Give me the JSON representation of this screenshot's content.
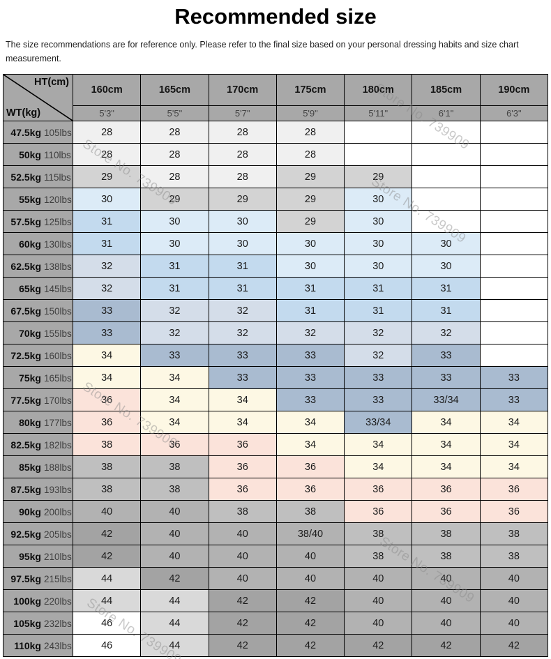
{
  "page": {
    "title": "Recommended size",
    "subtitle": "The size recommendations are for reference only. Please refer to the final size based on your personal dressing habits and size chart measurement."
  },
  "chart_data": {
    "type": "table",
    "title": "Recommended size",
    "note": "The size recommendations are for reference only. Please refer to the final size based on your personal dressing habits and size chart measurement.",
    "corner": {
      "ht": "HT(cm)",
      "wt": "WT(kg)"
    },
    "watermark": "Store No. 739909",
    "columns": [
      {
        "cm": "160cm",
        "ft": "5'3\""
      },
      {
        "cm": "165cm",
        "ft": "5'5\""
      },
      {
        "cm": "170cm",
        "ft": "5'7\""
      },
      {
        "cm": "175cm",
        "ft": "5'9\""
      },
      {
        "cm": "180cm",
        "ft": "5'11\""
      },
      {
        "cm": "185cm",
        "ft": "6'1\""
      },
      {
        "cm": "190cm",
        "ft": "6'3\""
      }
    ],
    "cell_colors": {
      "c28": "#f0f0f0",
      "c29": "#d3d3d3",
      "c30": "#dcebf7",
      "c31": "#c3daee",
      "c32": "#d4dde9",
      "c33": "#a9bbd0",
      "c34": "#fdf8e4",
      "c36": "#fbe3da",
      "c38": "#bfbfbf",
      "c40": "#b2b2b2",
      "c42": "#a3a3a3",
      "c44": "#d9d9d9",
      "c46": "#ffffff",
      "empty": "#ffffff"
    },
    "rows": [
      {
        "kg": "47.5kg",
        "lbs": "105lbs",
        "cells": [
          {
            "v": "28",
            "k": "c28"
          },
          {
            "v": "28",
            "k": "c28"
          },
          {
            "v": "28",
            "k": "c28"
          },
          {
            "v": "28",
            "k": "c28"
          },
          {
            "v": "",
            "k": "empty"
          },
          {
            "v": "",
            "k": "empty"
          },
          {
            "v": "",
            "k": "empty"
          }
        ]
      },
      {
        "kg": "50kg",
        "lbs": "110lbs",
        "cells": [
          {
            "v": "28",
            "k": "c28"
          },
          {
            "v": "28",
            "k": "c28"
          },
          {
            "v": "28",
            "k": "c28"
          },
          {
            "v": "28",
            "k": "c28"
          },
          {
            "v": "",
            "k": "empty"
          },
          {
            "v": "",
            "k": "empty"
          },
          {
            "v": "",
            "k": "empty"
          }
        ]
      },
      {
        "kg": "52.5kg",
        "lbs": "115lbs",
        "cells": [
          {
            "v": "29",
            "k": "c29"
          },
          {
            "v": "28",
            "k": "c28"
          },
          {
            "v": "28",
            "k": "c28"
          },
          {
            "v": "29",
            "k": "c29"
          },
          {
            "v": "29",
            "k": "c29"
          },
          {
            "v": "",
            "k": "empty"
          },
          {
            "v": "",
            "k": "empty"
          }
        ]
      },
      {
        "kg": "55kg",
        "lbs": "120lbs",
        "cells": [
          {
            "v": "30",
            "k": "c30"
          },
          {
            "v": "29",
            "k": "c29"
          },
          {
            "v": "29",
            "k": "c29"
          },
          {
            "v": "29",
            "k": "c29"
          },
          {
            "v": "30",
            "k": "c30"
          },
          {
            "v": "",
            "k": "empty"
          },
          {
            "v": "",
            "k": "empty"
          }
        ]
      },
      {
        "kg": "57.5kg",
        "lbs": "125lbs",
        "cells": [
          {
            "v": "31",
            "k": "c31"
          },
          {
            "v": "30",
            "k": "c30"
          },
          {
            "v": "30",
            "k": "c30"
          },
          {
            "v": "29",
            "k": "c29"
          },
          {
            "v": "30",
            "k": "c30"
          },
          {
            "v": "",
            "k": "empty"
          },
          {
            "v": "",
            "k": "empty"
          }
        ]
      },
      {
        "kg": "60kg",
        "lbs": "130lbs",
        "cells": [
          {
            "v": "31",
            "k": "c31"
          },
          {
            "v": "30",
            "k": "c30"
          },
          {
            "v": "30",
            "k": "c30"
          },
          {
            "v": "30",
            "k": "c30"
          },
          {
            "v": "30",
            "k": "c30"
          },
          {
            "v": "30",
            "k": "c30"
          },
          {
            "v": "",
            "k": "empty"
          }
        ]
      },
      {
        "kg": "62.5kg",
        "lbs": "138lbs",
        "cells": [
          {
            "v": "32",
            "k": "c32"
          },
          {
            "v": "31",
            "k": "c31"
          },
          {
            "v": "31",
            "k": "c31"
          },
          {
            "v": "30",
            "k": "c30"
          },
          {
            "v": "30",
            "k": "c30"
          },
          {
            "v": "30",
            "k": "c30"
          },
          {
            "v": "",
            "k": "empty"
          }
        ]
      },
      {
        "kg": "65kg",
        "lbs": "145lbs",
        "cells": [
          {
            "v": "32",
            "k": "c32"
          },
          {
            "v": "31",
            "k": "c31"
          },
          {
            "v": "31",
            "k": "c31"
          },
          {
            "v": "31",
            "k": "c31"
          },
          {
            "v": "31",
            "k": "c31"
          },
          {
            "v": "31",
            "k": "c31"
          },
          {
            "v": "",
            "k": "empty"
          }
        ]
      },
      {
        "kg": "67.5kg",
        "lbs": "150lbs",
        "cells": [
          {
            "v": "33",
            "k": "c33"
          },
          {
            "v": "32",
            "k": "c32"
          },
          {
            "v": "32",
            "k": "c32"
          },
          {
            "v": "31",
            "k": "c31"
          },
          {
            "v": "31",
            "k": "c31"
          },
          {
            "v": "31",
            "k": "c31"
          },
          {
            "v": "",
            "k": "empty"
          }
        ]
      },
      {
        "kg": "70kg",
        "lbs": "155lbs",
        "cells": [
          {
            "v": "33",
            "k": "c33"
          },
          {
            "v": "32",
            "k": "c32"
          },
          {
            "v": "32",
            "k": "c32"
          },
          {
            "v": "32",
            "k": "c32"
          },
          {
            "v": "32",
            "k": "c32"
          },
          {
            "v": "32",
            "k": "c32"
          },
          {
            "v": "",
            "k": "empty"
          }
        ]
      },
      {
        "kg": "72.5kg",
        "lbs": "160lbs",
        "cells": [
          {
            "v": "34",
            "k": "c34"
          },
          {
            "v": "33",
            "k": "c33"
          },
          {
            "v": "33",
            "k": "c33"
          },
          {
            "v": "33",
            "k": "c33"
          },
          {
            "v": "32",
            "k": "c32"
          },
          {
            "v": "33",
            "k": "c33"
          },
          {
            "v": "",
            "k": "empty"
          }
        ]
      },
      {
        "kg": "75kg",
        "lbs": "165lbs",
        "cells": [
          {
            "v": "34",
            "k": "c34"
          },
          {
            "v": "34",
            "k": "c34"
          },
          {
            "v": "33",
            "k": "c33"
          },
          {
            "v": "33",
            "k": "c33"
          },
          {
            "v": "33",
            "k": "c33"
          },
          {
            "v": "33",
            "k": "c33"
          },
          {
            "v": "33",
            "k": "c33"
          }
        ]
      },
      {
        "kg": "77.5kg",
        "lbs": "170lbs",
        "cells": [
          {
            "v": "36",
            "k": "c36"
          },
          {
            "v": "34",
            "k": "c34"
          },
          {
            "v": "34",
            "k": "c34"
          },
          {
            "v": "33",
            "k": "c33"
          },
          {
            "v": "33",
            "k": "c33"
          },
          {
            "v": "33/34",
            "k": "c33"
          },
          {
            "v": "33",
            "k": "c33"
          }
        ]
      },
      {
        "kg": "80kg",
        "lbs": "177lbs",
        "cells": [
          {
            "v": "36",
            "k": "c36"
          },
          {
            "v": "34",
            "k": "c34"
          },
          {
            "v": "34",
            "k": "c34"
          },
          {
            "v": "34",
            "k": "c34"
          },
          {
            "v": "33/34",
            "k": "c33"
          },
          {
            "v": "34",
            "k": "c34"
          },
          {
            "v": "34",
            "k": "c34"
          }
        ]
      },
      {
        "kg": "82.5kg",
        "lbs": "182lbs",
        "cells": [
          {
            "v": "38",
            "k": "c36"
          },
          {
            "v": "36",
            "k": "c36"
          },
          {
            "v": "36",
            "k": "c36"
          },
          {
            "v": "34",
            "k": "c34"
          },
          {
            "v": "34",
            "k": "c34"
          },
          {
            "v": "34",
            "k": "c34"
          },
          {
            "v": "34",
            "k": "c34"
          }
        ]
      },
      {
        "kg": "85kg",
        "lbs": "188lbs",
        "cells": [
          {
            "v": "38",
            "k": "c38"
          },
          {
            "v": "38",
            "k": "c38"
          },
          {
            "v": "36",
            "k": "c36"
          },
          {
            "v": "36",
            "k": "c36"
          },
          {
            "v": "34",
            "k": "c34"
          },
          {
            "v": "34",
            "k": "c34"
          },
          {
            "v": "34",
            "k": "c34"
          }
        ]
      },
      {
        "kg": "87.5kg",
        "lbs": "193lbs",
        "cells": [
          {
            "v": "38",
            "k": "c38"
          },
          {
            "v": "38",
            "k": "c38"
          },
          {
            "v": "36",
            "k": "c36"
          },
          {
            "v": "36",
            "k": "c36"
          },
          {
            "v": "36",
            "k": "c36"
          },
          {
            "v": "36",
            "k": "c36"
          },
          {
            "v": "36",
            "k": "c36"
          }
        ]
      },
      {
        "kg": "90kg",
        "lbs": "200lbs",
        "cells": [
          {
            "v": "40",
            "k": "c40"
          },
          {
            "v": "40",
            "k": "c40"
          },
          {
            "v": "38",
            "k": "c38"
          },
          {
            "v": "38",
            "k": "c38"
          },
          {
            "v": "36",
            "k": "c36"
          },
          {
            "v": "36",
            "k": "c36"
          },
          {
            "v": "36",
            "k": "c36"
          }
        ]
      },
      {
        "kg": "92.5kg",
        "lbs": "205lbs",
        "cells": [
          {
            "v": "42",
            "k": "c42"
          },
          {
            "v": "40",
            "k": "c40"
          },
          {
            "v": "40",
            "k": "c40"
          },
          {
            "v": "38/40",
            "k": "c40"
          },
          {
            "v": "38",
            "k": "c38"
          },
          {
            "v": "38",
            "k": "c38"
          },
          {
            "v": "38",
            "k": "c38"
          }
        ]
      },
      {
        "kg": "95kg",
        "lbs": "210lbs",
        "cells": [
          {
            "v": "42",
            "k": "c42"
          },
          {
            "v": "40",
            "k": "c40"
          },
          {
            "v": "40",
            "k": "c40"
          },
          {
            "v": "40",
            "k": "c40"
          },
          {
            "v": "38",
            "k": "c38"
          },
          {
            "v": "38",
            "k": "c38"
          },
          {
            "v": "38",
            "k": "c38"
          }
        ]
      },
      {
        "kg": "97.5kg",
        "lbs": "215lbs",
        "cells": [
          {
            "v": "44",
            "k": "c44"
          },
          {
            "v": "42",
            "k": "c42"
          },
          {
            "v": "40",
            "k": "c40"
          },
          {
            "v": "40",
            "k": "c40"
          },
          {
            "v": "40",
            "k": "c40"
          },
          {
            "v": "40",
            "k": "c40"
          },
          {
            "v": "40",
            "k": "c40"
          }
        ]
      },
      {
        "kg": "100kg",
        "lbs": "220lbs",
        "cells": [
          {
            "v": "44",
            "k": "c44"
          },
          {
            "v": "44",
            "k": "c44"
          },
          {
            "v": "42",
            "k": "c42"
          },
          {
            "v": "42",
            "k": "c42"
          },
          {
            "v": "40",
            "k": "c40"
          },
          {
            "v": "40",
            "k": "c40"
          },
          {
            "v": "40",
            "k": "c40"
          }
        ]
      },
      {
        "kg": "105kg",
        "lbs": "232lbs",
        "cells": [
          {
            "v": "46",
            "k": "c46"
          },
          {
            "v": "44",
            "k": "c44"
          },
          {
            "v": "42",
            "k": "c42"
          },
          {
            "v": "42",
            "k": "c42"
          },
          {
            "v": "40",
            "k": "c40"
          },
          {
            "v": "40",
            "k": "c40"
          },
          {
            "v": "40",
            "k": "c40"
          }
        ]
      },
      {
        "kg": "110kg",
        "lbs": "243lbs",
        "cells": [
          {
            "v": "46",
            "k": "c46"
          },
          {
            "v": "44",
            "k": "c44"
          },
          {
            "v": "42",
            "k": "c42"
          },
          {
            "v": "42",
            "k": "c42"
          },
          {
            "v": "42",
            "k": "c42"
          },
          {
            "v": "42",
            "k": "c42"
          },
          {
            "v": "42",
            "k": "c42"
          }
        ]
      }
    ]
  }
}
